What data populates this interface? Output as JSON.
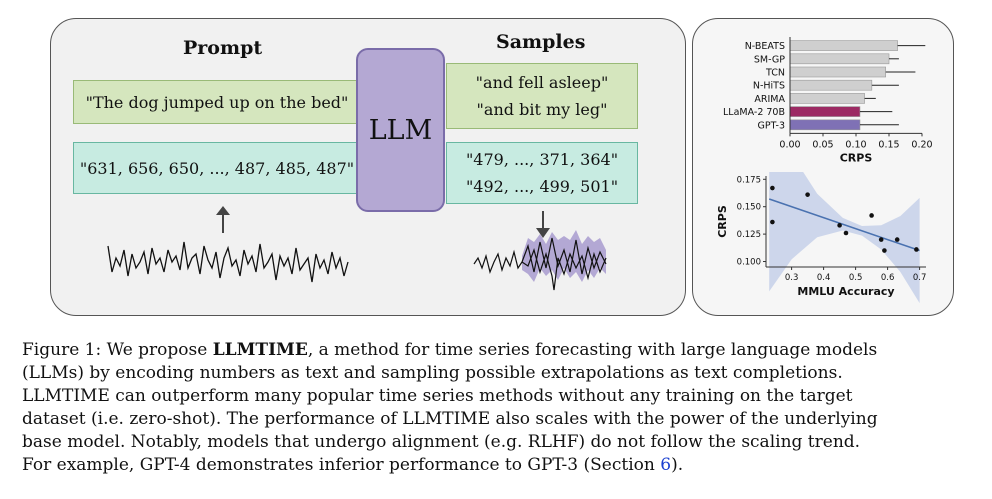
{
  "diagram": {
    "prompt_heading": "Prompt",
    "samples_heading": "Samples",
    "llm_label": "LLM",
    "prompt_text": "\"The dog jumped up on the bed\"",
    "prompt_numbers": "\"631, 656, 650, ..., 487, 485, 487\"",
    "samples_text": [
      "\"and fell asleep\"",
      "\"and bit my leg\""
    ],
    "samples_numbers": [
      "\"479, ..., 371, 364\"",
      "\"492, ..., 499, 501\""
    ]
  },
  "chart_data": [
    {
      "type": "bar",
      "orientation": "horizontal",
      "categories": [
        "N-BEATS",
        "SM-GP",
        "TCN",
        "N-HiTS",
        "ARIMA",
        "LLaMA-2 70B",
        "GPT-3"
      ],
      "values": [
        0.163,
        0.15,
        0.145,
        0.124,
        0.113,
        0.106,
        0.106
      ],
      "error_high": [
        0.205,
        0.165,
        0.19,
        0.165,
        0.13,
        0.155,
        0.165
      ],
      "colors": [
        "#cfcfcf",
        "#cfcfcf",
        "#cfcfcf",
        "#cfcfcf",
        "#cfcfcf",
        "#9c2a63",
        "#7f71b5"
      ],
      "xlabel": "CRPS",
      "xlim": [
        0,
        0.2
      ],
      "xticks": [
        "0.00",
        "0.05",
        "0.10",
        "0.15",
        "0.20"
      ]
    },
    {
      "type": "scatter",
      "points": [
        {
          "x": 0.24,
          "y": 0.167
        },
        {
          "x": 0.24,
          "y": 0.136
        },
        {
          "x": 0.35,
          "y": 0.161
        },
        {
          "x": 0.45,
          "y": 0.133
        },
        {
          "x": 0.47,
          "y": 0.126
        },
        {
          "x": 0.55,
          "y": 0.142
        },
        {
          "x": 0.58,
          "y": 0.12
        },
        {
          "x": 0.59,
          "y": 0.11
        },
        {
          "x": 0.63,
          "y": 0.12
        },
        {
          "x": 0.69,
          "y": 0.111
        }
      ],
      "fit": {
        "x": [
          0.23,
          0.7
        ],
        "y": [
          0.157,
          0.11
        ]
      },
      "xlabel": "MMLU Accuracy",
      "ylabel": "CRPS",
      "xlim": [
        0.22,
        0.72
      ],
      "ylim": [
        0.095,
        0.178
      ],
      "xticks": [
        "0.3",
        "0.4",
        "0.5",
        "0.6",
        "0.7"
      ],
      "yticks": [
        "0.100",
        "0.125",
        "0.150",
        "0.175"
      ],
      "colors": {
        "line": "#4a72b0",
        "band": "#c9d3ea",
        "point": "#111111"
      }
    }
  ],
  "caption": {
    "fig_label": "Figure 1: We propose ",
    "method": "LLMTIME",
    "line1_rest": ", a method for time series forecasting with large language models",
    "line2": "(LLMs) by encoding numbers as text and sampling possible extrapolations as text completions.",
    "line3": "LLMTIME can outperform many popular time series methods without any training on the target",
    "line4": "dataset (i.e. zero-shot). The performance of LLMTIME also scales with the power of the underlying",
    "line5": "base model. Notably, models that undergo alignment (e.g. RLHF) do not follow the scaling trend.",
    "line6_pre": "For example, GPT-4 demonstrates inferior performance to GPT-3 (Section ",
    "section_ref": "6",
    "line6_post": ")."
  }
}
